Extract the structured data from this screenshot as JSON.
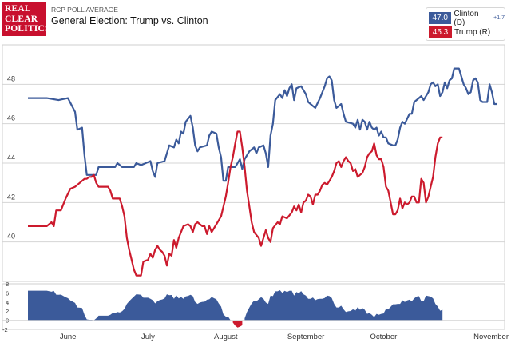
{
  "header": {
    "logo_lines": [
      "REAL",
      "CLEAR",
      "POLITICS"
    ],
    "subtitle": "RCP POLL AVERAGE",
    "title": "General Election: Trump vs. Clinton"
  },
  "legend": {
    "items": [
      {
        "value": "47.0",
        "name": "Clinton (D)",
        "delta": "+1.7",
        "color": "#3b5a9a"
      },
      {
        "value": "45.3",
        "name": "Trump (R)",
        "delta": "",
        "color": "#cc1a2d"
      }
    ]
  },
  "chart_data": {
    "type": "line",
    "x_labels": [
      "June",
      "July",
      "August",
      "September",
      "October",
      "November"
    ],
    "ylim": [
      38,
      50
    ],
    "yticks": [
      40,
      42,
      44,
      46,
      48
    ],
    "grid": true,
    "legend_position": "top-right",
    "series": [
      {
        "name": "Clinton (D)",
        "color": "#3b5a9a",
        "points": [
          [
            0,
            47.3
          ],
          [
            8,
            47.3
          ],
          [
            13,
            47.2
          ],
          [
            17,
            47.3
          ],
          [
            20,
            46.6
          ],
          [
            21,
            45.7
          ],
          [
            23,
            45.8
          ],
          [
            24,
            44.4
          ],
          [
            25,
            43.4
          ],
          [
            29,
            43.4
          ],
          [
            30,
            43.8
          ],
          [
            37,
            43.8
          ],
          [
            38,
            44.0
          ],
          [
            40,
            43.8
          ],
          [
            45,
            43.8
          ],
          [
            46,
            44.0
          ],
          [
            48,
            43.9
          ],
          [
            52,
            44.1
          ],
          [
            53,
            43.6
          ],
          [
            54,
            43.3
          ],
          [
            55,
            44.0
          ],
          [
            58,
            44.1
          ],
          [
            60,
            44.9
          ],
          [
            62,
            44.8
          ],
          [
            63,
            45.2
          ],
          [
            64,
            45.0
          ],
          [
            65,
            45.6
          ],
          [
            66,
            45.5
          ],
          [
            67,
            46.1
          ],
          [
            69,
            46.4
          ],
          [
            70,
            45.8
          ],
          [
            71,
            44.9
          ],
          [
            72,
            44.6
          ],
          [
            73,
            44.8
          ],
          [
            76,
            44.9
          ],
          [
            77,
            45.4
          ],
          [
            78,
            45.6
          ],
          [
            80,
            45.5
          ],
          [
            81,
            44.8
          ],
          [
            82,
            44.3
          ],
          [
            83,
            43.1
          ],
          [
            84,
            43.1
          ],
          [
            85,
            43.8
          ],
          [
            88,
            43.8
          ],
          [
            90,
            44.2
          ],
          [
            91,
            43.7
          ],
          [
            92,
            44.2
          ],
          [
            94,
            44.6
          ],
          [
            96,
            44.8
          ],
          [
            97,
            44.5
          ],
          [
            98,
            44.8
          ],
          [
            100,
            44.9
          ],
          [
            101,
            44.5
          ],
          [
            102,
            43.8
          ],
          [
            103,
            45.4
          ],
          [
            104,
            46.0
          ],
          [
            105,
            47.2
          ],
          [
            107,
            47.5
          ],
          [
            108,
            47.3
          ],
          [
            109,
            47.7
          ],
          [
            110,
            47.4
          ],
          [
            111,
            47.8
          ],
          [
            112,
            48.0
          ],
          [
            113,
            47.2
          ],
          [
            114,
            47.8
          ],
          [
            116,
            47.9
          ],
          [
            118,
            47.5
          ],
          [
            119,
            47.1
          ],
          [
            121,
            46.9
          ],
          [
            122,
            46.8
          ],
          [
            124,
            47.3
          ],
          [
            126,
            47.9
          ],
          [
            127,
            48.3
          ],
          [
            128,
            48.4
          ],
          [
            129,
            48.2
          ],
          [
            130,
            47.2
          ],
          [
            131,
            46.8
          ],
          [
            132,
            46.9
          ],
          [
            133,
            47.0
          ],
          [
            134,
            46.5
          ],
          [
            135,
            46.1
          ],
          [
            138,
            46.0
          ],
          [
            139,
            45.8
          ],
          [
            140,
            46.2
          ],
          [
            141,
            45.7
          ],
          [
            142,
            46.2
          ],
          [
            143,
            46.1
          ],
          [
            144,
            45.7
          ],
          [
            145,
            46.1
          ],
          [
            146,
            45.8
          ],
          [
            147,
            45.7
          ],
          [
            148,
            45.8
          ],
          [
            149,
            45.4
          ],
          [
            150,
            45.6
          ],
          [
            151,
            45.3
          ],
          [
            152,
            45.3
          ],
          [
            153,
            45.0
          ],
          [
            155,
            44.9
          ],
          [
            156,
            44.9
          ],
          [
            157,
            45.2
          ],
          [
            158,
            45.8
          ],
          [
            159,
            46.1
          ],
          [
            160,
            46.0
          ],
          [
            162,
            46.5
          ],
          [
            163,
            46.5
          ],
          [
            164,
            47.1
          ],
          [
            166,
            47.3
          ],
          [
            167,
            47.4
          ],
          [
            168,
            47.2
          ],
          [
            170,
            47.6
          ],
          [
            171,
            48.0
          ],
          [
            172,
            48.1
          ],
          [
            173,
            47.9
          ],
          [
            174,
            48.0
          ],
          [
            175,
            47.4
          ],
          [
            176,
            47.6
          ],
          [
            177,
            48.1
          ],
          [
            178,
            47.8
          ],
          [
            179,
            48.2
          ],
          [
            180,
            48.3
          ],
          [
            181,
            48.8
          ],
          [
            182,
            48.8
          ],
          [
            183,
            48.8
          ],
          [
            184,
            48.4
          ],
          [
            185,
            48.0
          ],
          [
            186,
            47.8
          ],
          [
            187,
            47.5
          ],
          [
            188,
            47.6
          ],
          [
            189,
            48.2
          ],
          [
            190,
            48.3
          ],
          [
            191,
            48.1
          ],
          [
            192,
            47.2
          ],
          [
            193,
            47.1
          ],
          [
            195,
            47.1
          ],
          [
            196,
            48.0
          ],
          [
            197,
            47.6
          ],
          [
            198,
            47.0
          ],
          [
            199,
            47.0
          ]
        ]
      },
      {
        "name": "Trump (R)",
        "color": "#cc1a2d",
        "points": [
          [
            0,
            40.8
          ],
          [
            8,
            40.8
          ],
          [
            10,
            41.0
          ],
          [
            11,
            40.8
          ],
          [
            12,
            41.6
          ],
          [
            14,
            41.6
          ],
          [
            16,
            42.2
          ],
          [
            18,
            42.7
          ],
          [
            20,
            42.8
          ],
          [
            22,
            43.0
          ],
          [
            24,
            43.2
          ],
          [
            25,
            43.2
          ],
          [
            26,
            43.3
          ],
          [
            27,
            43.3
          ],
          [
            28,
            43.4
          ],
          [
            29,
            43.0
          ],
          [
            30,
            42.8
          ],
          [
            34,
            42.8
          ],
          [
            35,
            42.6
          ],
          [
            36,
            42.2
          ],
          [
            39,
            42.2
          ],
          [
            40,
            41.8
          ],
          [
            41,
            41.3
          ],
          [
            42,
            40.2
          ],
          [
            43,
            39.6
          ],
          [
            44,
            39.1
          ],
          [
            45,
            38.6
          ],
          [
            46,
            38.3
          ],
          [
            48,
            38.3
          ],
          [
            49,
            39.0
          ],
          [
            51,
            39.1
          ],
          [
            52,
            39.4
          ],
          [
            53,
            39.2
          ],
          [
            54,
            39.6
          ],
          [
            55,
            39.8
          ],
          [
            56,
            39.6
          ],
          [
            57,
            39.5
          ],
          [
            58,
            39.3
          ],
          [
            59,
            38.8
          ],
          [
            60,
            39.4
          ],
          [
            61,
            39.3
          ],
          [
            62,
            40.1
          ],
          [
            63,
            39.7
          ],
          [
            64,
            40.2
          ],
          [
            66,
            40.8
          ],
          [
            68,
            40.9
          ],
          [
            69,
            40.8
          ],
          [
            70,
            40.5
          ],
          [
            71,
            40.9
          ],
          [
            72,
            41.0
          ],
          [
            74,
            40.8
          ],
          [
            75,
            40.8
          ],
          [
            76,
            40.4
          ],
          [
            77,
            40.8
          ],
          [
            78,
            40.5
          ],
          [
            80,
            40.9
          ],
          [
            82,
            41.3
          ],
          [
            84,
            42.3
          ],
          [
            85,
            43.0
          ],
          [
            86,
            43.8
          ],
          [
            87,
            44.3
          ],
          [
            88,
            45.0
          ],
          [
            89,
            45.6
          ],
          [
            90,
            45.6
          ],
          [
            91,
            44.8
          ],
          [
            92,
            43.8
          ],
          [
            93,
            42.6
          ],
          [
            94,
            41.8
          ],
          [
            95,
            41.0
          ],
          [
            96,
            40.5
          ],
          [
            98,
            40.2
          ],
          [
            99,
            39.8
          ],
          [
            100,
            40.2
          ],
          [
            101,
            40.6
          ],
          [
            102,
            40.2
          ],
          [
            103,
            40.0
          ],
          [
            104,
            40.7
          ],
          [
            106,
            41.0
          ],
          [
            107,
            40.9
          ],
          [
            108,
            41.3
          ],
          [
            110,
            41.2
          ],
          [
            112,
            41.5
          ],
          [
            113,
            41.8
          ],
          [
            114,
            41.6
          ],
          [
            115,
            41.9
          ],
          [
            116,
            41.5
          ],
          [
            117,
            42.0
          ],
          [
            118,
            42.1
          ],
          [
            119,
            42.4
          ],
          [
            120,
            42.3
          ],
          [
            121,
            41.9
          ],
          [
            122,
            42.4
          ],
          [
            123,
            42.4
          ],
          [
            124,
            42.6
          ],
          [
            125,
            42.9
          ],
          [
            126,
            43.0
          ],
          [
            127,
            42.9
          ],
          [
            128,
            43.1
          ],
          [
            129,
            43.3
          ],
          [
            130,
            43.6
          ],
          [
            131,
            44.0
          ],
          [
            132,
            44.1
          ],
          [
            133,
            43.8
          ],
          [
            134,
            44.1
          ],
          [
            135,
            44.3
          ],
          [
            136,
            44.1
          ],
          [
            137,
            44.0
          ],
          [
            138,
            43.6
          ],
          [
            139,
            43.7
          ],
          [
            140,
            43.3
          ],
          [
            141,
            43.4
          ],
          [
            142,
            43.5
          ],
          [
            143,
            43.8
          ],
          [
            144,
            44.3
          ],
          [
            145,
            44.5
          ],
          [
            146,
            44.6
          ],
          [
            147,
            45.0
          ],
          [
            148,
            44.4
          ],
          [
            149,
            44.2
          ],
          [
            150,
            44.2
          ],
          [
            151,
            43.8
          ],
          [
            152,
            42.8
          ],
          [
            153,
            42.6
          ],
          [
            154,
            42.0
          ],
          [
            155,
            41.4
          ],
          [
            156,
            41.4
          ],
          [
            157,
            41.6
          ],
          [
            158,
            42.2
          ],
          [
            159,
            41.7
          ],
          [
            160,
            42.0
          ],
          [
            161,
            41.9
          ],
          [
            162,
            42.0
          ],
          [
            163,
            42.3
          ],
          [
            164,
            42.3
          ],
          [
            165,
            42.0
          ],
          [
            166,
            42.0
          ],
          [
            167,
            43.2
          ],
          [
            168,
            43.0
          ],
          [
            169,
            42.0
          ],
          [
            170,
            42.3
          ],
          [
            171,
            42.8
          ],
          [
            172,
            43.3
          ],
          [
            173,
            44.3
          ],
          [
            174,
            45.0
          ],
          [
            175,
            45.3
          ],
          [
            176,
            45.3
          ]
        ]
      }
    ],
    "spread": {
      "ylim": [
        -2,
        8
      ],
      "yticks": [
        -2,
        0,
        2,
        4,
        6,
        8
      ]
    }
  }
}
